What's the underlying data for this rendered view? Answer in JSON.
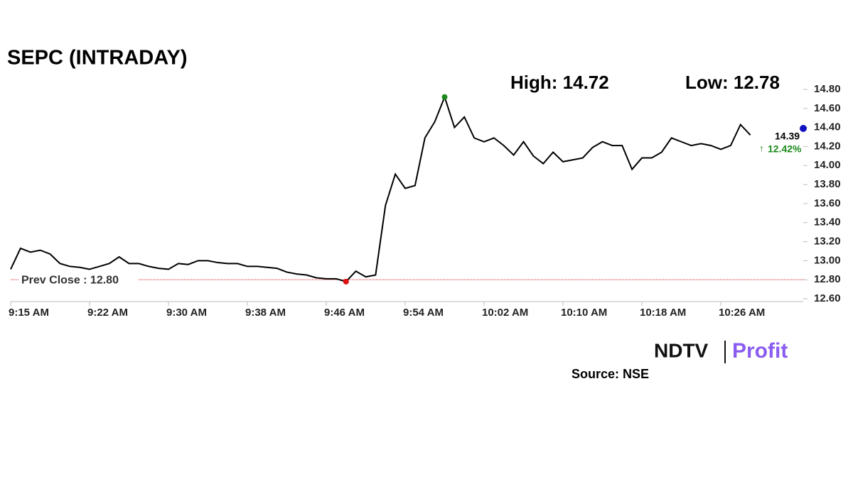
{
  "chart_data": {
    "type": "line",
    "title": "SEPC (INTRADAY)",
    "high_label": "High: 14.72",
    "low_label": "Low: 12.78",
    "categories": [
      "9:15 AM",
      null,
      null,
      null,
      null,
      null,
      null,
      null,
      "9:22 AM",
      null,
      null,
      null,
      null,
      null,
      null,
      null,
      "9:30 AM",
      null,
      null,
      null,
      null,
      null,
      null,
      null,
      "9:38 AM",
      null,
      null,
      null,
      null,
      null,
      null,
      null,
      "9:46 AM",
      null,
      null,
      null,
      null,
      null,
      null,
      null,
      "9:54 AM",
      null,
      null,
      null,
      null,
      null,
      null,
      null,
      "10:02 AM",
      null,
      null,
      null,
      null,
      null,
      null,
      null,
      "10:10 AM",
      null,
      null,
      null,
      null,
      null,
      null,
      null,
      "10:18 AM",
      null,
      null,
      null,
      null,
      null,
      null,
      null,
      "10:26 AM",
      null,
      null,
      null
    ],
    "series": [
      {
        "color": "#000000",
        "values": [
          12.91,
          13.13,
          13.09,
          13.11,
          13.07,
          12.97,
          12.94,
          12.93,
          12.91,
          12.94,
          12.97,
          13.04,
          12.97,
          12.97,
          12.94,
          12.92,
          12.91,
          12.97,
          12.96,
          13.0,
          13.0,
          12.98,
          12.97,
          12.97,
          12.94,
          12.94,
          12.93,
          12.92,
          12.88,
          12.86,
          12.85,
          12.82,
          12.81,
          12.81,
          12.78,
          12.89,
          12.83,
          12.85,
          13.58,
          13.91,
          13.76,
          13.79,
          14.29,
          14.46,
          14.72,
          14.4,
          14.51,
          14.29,
          14.25,
          14.29,
          14.21,
          14.11,
          14.25,
          14.1,
          14.02,
          14.14,
          14.04,
          14.06,
          14.08,
          14.19,
          14.25,
          14.21,
          14.21,
          13.96,
          14.08,
          14.08,
          14.14,
          14.29,
          14.25,
          14.21,
          14.23,
          14.21,
          14.17,
          14.21,
          14.43,
          14.32
        ]
      }
    ],
    "prev_close": 12.8,
    "prev_close_label": "Prev Close : 12.80",
    "last": 14.39,
    "change": 12.42,
    "change_label": "12.42%",
    "ylim": [
      12.6,
      14.8
    ],
    "yticks": [
      {
        "value": 12.6,
        "label": "12.60"
      },
      {
        "value": 12.8,
        "label": "12.80"
      },
      {
        "value": 13.0,
        "label": "13.00"
      },
      {
        "value": 13.2,
        "label": "13.20"
      },
      {
        "value": 13.4,
        "label": "13.40"
      },
      {
        "value": 13.6,
        "label": "13.60"
      },
      {
        "value": 13.8,
        "label": "13.80"
      },
      {
        "value": 14.0,
        "label": "14.00"
      },
      {
        "value": 14.2,
        "label": "14.20"
      },
      {
        "value": 14.4,
        "label": "14.40"
      },
      {
        "value": 14.6,
        "label": "14.60"
      },
      {
        "value": 14.8,
        "label": "14.80"
      }
    ],
    "logo": [
      "NDTV",
      "Profit"
    ],
    "source": "Source: NSE"
  }
}
